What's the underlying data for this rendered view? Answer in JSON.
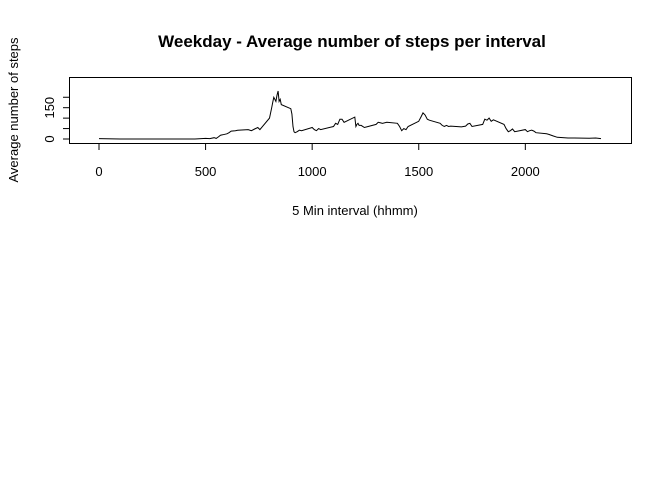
{
  "chart_data": {
    "type": "line",
    "title": "Weekday - Average number of steps per interval",
    "xlabel": "5 Min interval (hhmm)",
    "ylabel": "Average number of steps",
    "xlim": [
      0,
      2355
    ],
    "ylim": [
      0,
      230
    ],
    "x_ticks": [
      0,
      500,
      1000,
      1500,
      2000
    ],
    "y_ticks": [
      0,
      150
    ],
    "y_minor_ticks": [
      0,
      50,
      100,
      150,
      200
    ],
    "grid": false,
    "series": [
      {
        "x": [
          0,
          100,
          200,
          300,
          400,
          450,
          500,
          520,
          540,
          550,
          560,
          570,
          580,
          600,
          610,
          620,
          640,
          650,
          700,
          715,
          730,
          745,
          755,
          800,
          810,
          815,
          820,
          830,
          835,
          840,
          845,
          850,
          855,
          900,
          905,
          910,
          915,
          920,
          930,
          940,
          950,
          1000,
          1010,
          1020,
          1030,
          1040,
          1100,
          1110,
          1120,
          1130,
          1140,
          1150,
          1200,
          1205,
          1210,
          1215,
          1220,
          1230,
          1245,
          1300,
          1310,
          1330,
          1350,
          1400,
          1410,
          1420,
          1430,
          1440,
          1450,
          1500,
          1510,
          1520,
          1530,
          1540,
          1550,
          1600,
          1610,
          1620,
          1630,
          1640,
          1650,
          1700,
          1710,
          1720,
          1730,
          1740,
          1750,
          1800,
          1810,
          1820,
          1830,
          1840,
          1850,
          1900,
          1910,
          1920,
          1930,
          1940,
          1950,
          2000,
          2010,
          2020,
          2030,
          2040,
          2050,
          2100,
          2110,
          2130,
          2150,
          2200,
          2230,
          2300,
          2330,
          2355
        ],
        "y": [
          2,
          0,
          0,
          0,
          0,
          0,
          3,
          2,
          6,
          3,
          10,
          18,
          20,
          25,
          30,
          38,
          40,
          42,
          45,
          40,
          48,
          55,
          45,
          100,
          150,
          175,
          200,
          180,
          210,
          230,
          180,
          190,
          165,
          145,
          120,
          60,
          35,
          30,
          35,
          42,
          40,
          55,
          45,
          40,
          50,
          45,
          60,
          75,
          70,
          95,
          95,
          80,
          105,
          60,
          70,
          75,
          65,
          65,
          55,
          70,
          80,
          75,
          80,
          75,
          60,
          40,
          50,
          45,
          60,
          85,
          105,
          125,
          115,
          95,
          90,
          75,
          65,
          60,
          65,
          60,
          62,
          58,
          60,
          62,
          72,
          75,
          60,
          70,
          95,
          90,
          100,
          85,
          92,
          70,
          50,
          35,
          40,
          48,
          35,
          45,
          35,
          40,
          42,
          38,
          30,
          25,
          22,
          15,
          8,
          5,
          5,
          4,
          5,
          2
        ]
      }
    ]
  }
}
